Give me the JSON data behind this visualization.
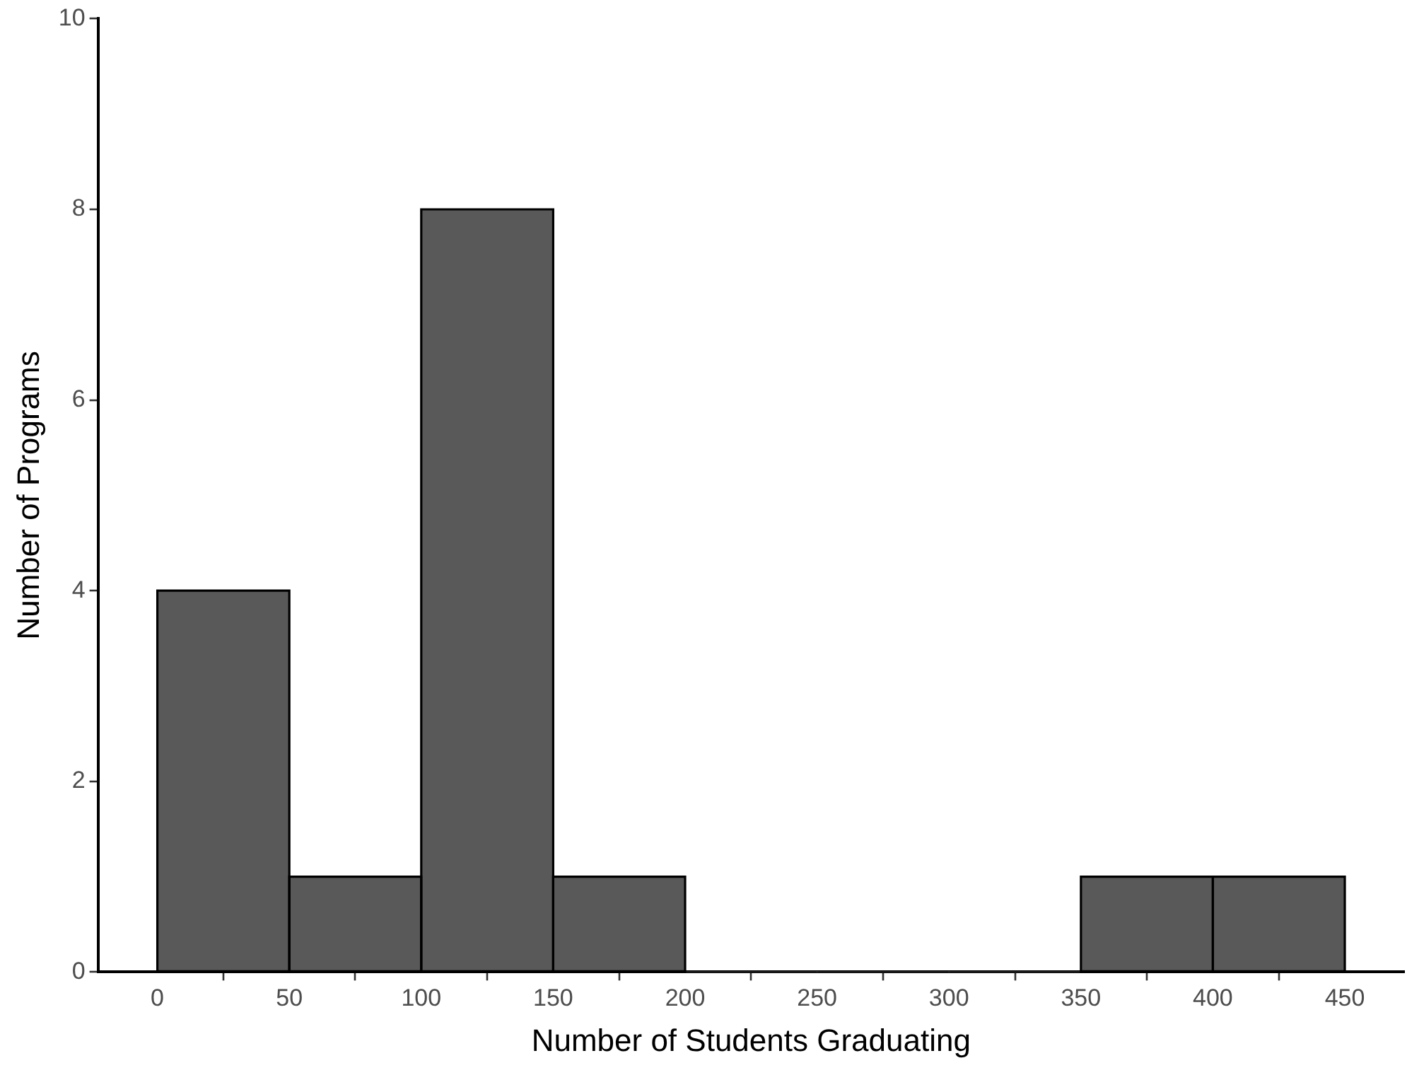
{
  "chart_data": {
    "type": "histogram",
    "xlabel": "Number of Students Graduating",
    "ylabel": "Number of Programs",
    "bins": [
      0,
      50,
      100,
      150,
      200,
      250,
      300,
      350,
      400,
      450
    ],
    "values": [
      4,
      1,
      8,
      1,
      0,
      0,
      0,
      1,
      1
    ],
    "color": "#595959",
    "xlim": [
      -22.5,
      472.5
    ],
    "xticks": [
      0,
      50,
      100,
      150,
      200,
      250,
      300,
      350,
      400,
      450
    ],
    "ylim": [
      0,
      10
    ],
    "yticks": [
      0,
      2,
      4,
      6,
      8,
      10
    ],
    "grid": false,
    "legend": false
  }
}
